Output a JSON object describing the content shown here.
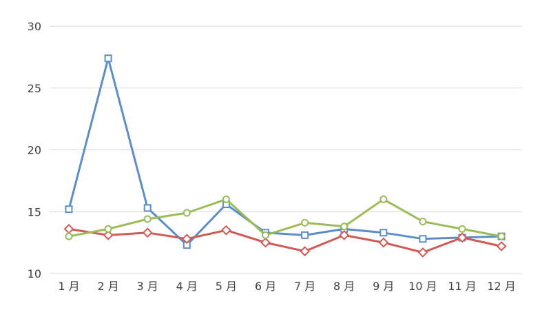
{
  "chart_data": {
    "type": "line",
    "categories": [
      "1 月",
      "2 月",
      "3 月",
      "4 月",
      "5 月",
      "6 月",
      "7 月",
      "8 月",
      "9 月",
      "10 月",
      "11 月",
      "12 月"
    ],
    "ylim": [
      10,
      30
    ],
    "yticks": [
      10,
      15,
      20,
      25,
      30
    ],
    "grid": true,
    "legend": "none",
    "series": [
      {
        "color": "#5b8ec9",
        "marker": "square",
        "values": [
          15.2,
          27.4,
          15.3,
          12.3,
          15.6,
          13.3,
          13.1,
          13.6,
          13.3,
          12.8,
          12.9,
          13.0
        ]
      },
      {
        "color": "#d15a55",
        "marker": "diamond",
        "values": [
          13.6,
          13.1,
          13.3,
          12.8,
          13.5,
          12.5,
          11.8,
          13.1,
          12.5,
          11.7,
          12.9,
          12.2
        ]
      },
      {
        "color": "#9bbb59",
        "marker": "circle",
        "values": [
          13.0,
          13.6,
          14.4,
          14.9,
          16.0,
          13.1,
          14.1,
          13.8,
          16.0,
          14.2,
          13.6,
          13.0
        ]
      }
    ]
  }
}
